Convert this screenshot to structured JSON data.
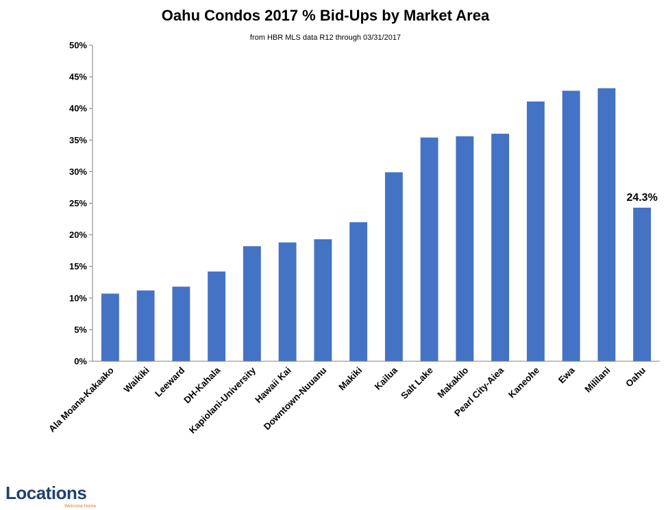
{
  "chart_data": {
    "type": "bar",
    "title": "Oahu Condos 2017 % Bid-Ups by Market Area",
    "subtitle": "from HBR MLS data R12 through 03/31/2017",
    "xlabel": "",
    "ylabel": "",
    "categories": [
      "Ala Moana-Kakaako",
      "Waikiki",
      "Leeward",
      "DH-Kahala",
      "Kapiolani-University",
      "Hawaii Kai",
      "Downtown-Nuuanu",
      "Makiki",
      "Kailua",
      "Salt Lake",
      "Makakilo",
      "Pearl City-Aiea",
      "Kaneohe",
      "Ewa",
      "Mililani",
      "Oahu"
    ],
    "values": [
      10.7,
      11.2,
      11.8,
      14.2,
      18.2,
      18.8,
      19.3,
      22.0,
      29.9,
      35.4,
      35.6,
      36.0,
      41.1,
      42.8,
      43.2,
      24.3
    ],
    "ylim": [
      0,
      50
    ],
    "y_ticks": [
      0,
      5,
      10,
      15,
      20,
      25,
      30,
      35,
      40,
      45,
      50
    ],
    "y_tick_suffix": "%",
    "grid": false,
    "legend": "none",
    "bar_color": "#4472c4",
    "data_labels": [
      {
        "category": "Oahu",
        "text": "24.3%"
      }
    ]
  },
  "logo": {
    "text": "Locations",
    "tagline": "Welcome Home",
    "text_color": "#1f3f73",
    "accent_color": "#e0752c"
  }
}
